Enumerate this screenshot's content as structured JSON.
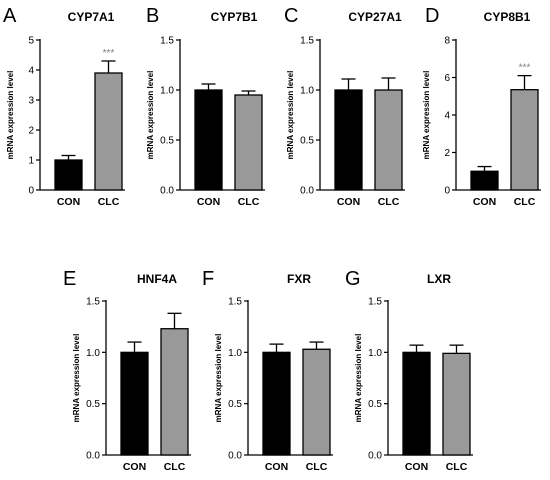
{
  "colors": {
    "CON": "#000000",
    "CLC": "#999999"
  },
  "chart_data": [
    {
      "type": "bar",
      "panel": "A",
      "title": "CYP7A1",
      "ylabel": "mRNA expression level",
      "categories": [
        "CON",
        "CLC"
      ],
      "values": [
        1.0,
        3.9
      ],
      "errors": [
        0.15,
        0.4
      ],
      "significance": [
        "",
        "***"
      ],
      "ylim": [
        0,
        5
      ],
      "yticks": [
        "0",
        "1",
        "2",
        "3",
        "4",
        "5"
      ],
      "ytick_values": [
        0,
        1,
        2,
        3,
        4,
        5
      ]
    },
    {
      "type": "bar",
      "panel": "B",
      "title": "CYP7B1",
      "ylabel": "mRNA expression level",
      "categories": [
        "CON",
        "CLC"
      ],
      "values": [
        1.0,
        0.95
      ],
      "errors": [
        0.06,
        0.04
      ],
      "significance": [
        "",
        ""
      ],
      "ylim": [
        0,
        1.5
      ],
      "yticks": [
        "0.0",
        "0.5",
        "1.0",
        "1.5"
      ],
      "ytick_values": [
        0,
        0.5,
        1.0,
        1.5
      ]
    },
    {
      "type": "bar",
      "panel": "C",
      "title": "CYP27A1",
      "ylabel": "mRNA expression level",
      "categories": [
        "CON",
        "CLC"
      ],
      "values": [
        1.0,
        1.0
      ],
      "errors": [
        0.11,
        0.12
      ],
      "significance": [
        "",
        ""
      ],
      "ylim": [
        0,
        1.5
      ],
      "yticks": [
        "0.0",
        "0.5",
        "1.0",
        "1.5"
      ],
      "ytick_values": [
        0,
        0.5,
        1.0,
        1.5
      ]
    },
    {
      "type": "bar",
      "panel": "D",
      "title": "CYP8B1",
      "ylabel": "mRNA expression level",
      "categories": [
        "CON",
        "CLC"
      ],
      "values": [
        1.0,
        5.35
      ],
      "errors": [
        0.25,
        0.75
      ],
      "significance": [
        "",
        "***"
      ],
      "ylim": [
        0,
        8
      ],
      "yticks": [
        "0",
        "2",
        "4",
        "6",
        "8"
      ],
      "ytick_values": [
        0,
        2,
        4,
        6,
        8
      ]
    },
    {
      "type": "bar",
      "panel": "E",
      "title": "HNF4A",
      "ylabel": "mRNA expression level",
      "categories": [
        "CON",
        "CLC"
      ],
      "values": [
        1.0,
        1.23
      ],
      "errors": [
        0.1,
        0.15
      ],
      "significance": [
        "",
        ""
      ],
      "ylim": [
        0,
        1.5
      ],
      "yticks": [
        "0.0",
        "0.5",
        "1.0",
        "1.5"
      ],
      "ytick_values": [
        0,
        0.5,
        1.0,
        1.5
      ]
    },
    {
      "type": "bar",
      "panel": "F",
      "title": "FXR",
      "ylabel": "mRNA expression level",
      "categories": [
        "CON",
        "CLC"
      ],
      "values": [
        1.0,
        1.03
      ],
      "errors": [
        0.08,
        0.07
      ],
      "significance": [
        "",
        ""
      ],
      "ylim": [
        0,
        1.5
      ],
      "yticks": [
        "0.0",
        "0.5",
        "1.0",
        "1.5"
      ],
      "ytick_values": [
        0,
        0.5,
        1.0,
        1.5
      ]
    },
    {
      "type": "bar",
      "panel": "G",
      "title": "LXR",
      "ylabel": "mRNA expression level",
      "categories": [
        "CON",
        "CLC"
      ],
      "values": [
        1.0,
        0.99
      ],
      "errors": [
        0.07,
        0.08
      ],
      "significance": [
        "",
        ""
      ],
      "ylim": [
        0,
        1.5
      ],
      "yticks": [
        "0.0",
        "0.5",
        "1.0",
        "1.5"
      ],
      "ytick_values": [
        0,
        0.5,
        1.0,
        1.5
      ]
    }
  ]
}
